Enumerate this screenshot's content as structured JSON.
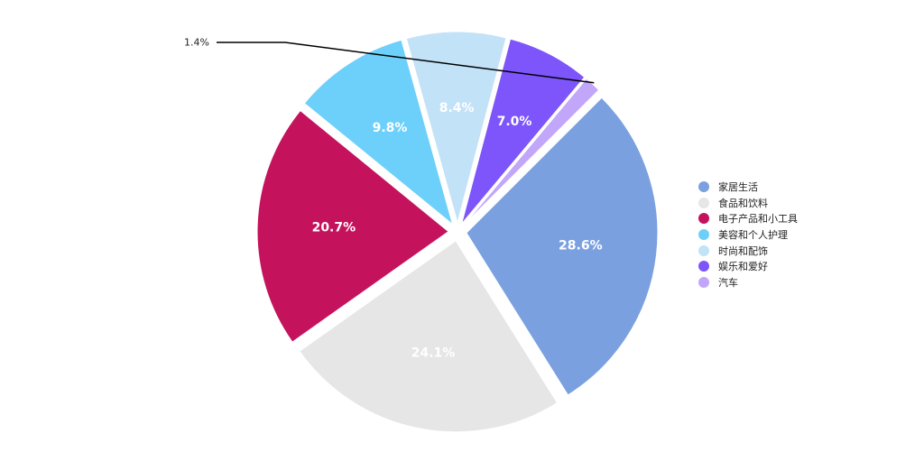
{
  "chart_data": {
    "type": "pie",
    "categories": [
      "家居生活",
      "食品和饮料",
      "电子产品和小工具",
      "美容和个人护理",
      "时尚和配饰",
      "娱乐和爱好",
      "汽车"
    ],
    "values": [
      28.6,
      24.1,
      20.7,
      9.8,
      8.4,
      7.0,
      1.4
    ],
    "labels": [
      "28.6%",
      "24.1%",
      "20.7%",
      "9.8%",
      "8.4%",
      "7.0%",
      "1.4%"
    ],
    "colors": [
      "#7aa0e0",
      "#e6e6e6",
      "#c4135c",
      "#6dd0fa",
      "#c2e2f8",
      "#7d55fa",
      "#c2a6fa"
    ],
    "label_colors": [
      "#ffffff",
      "#ffffff",
      "#ffffff",
      "#ffffff",
      "#ffffff",
      "#ffffff",
      "#222222"
    ],
    "legend_position": "right"
  }
}
